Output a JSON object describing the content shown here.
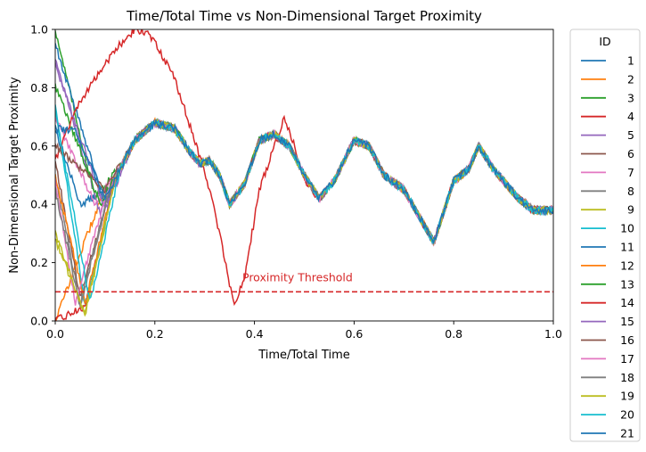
{
  "chart_data": {
    "type": "line",
    "title": "Time/Total Time vs Non-Dimensional Target Proximity",
    "xlabel": "Time/Total Time",
    "ylabel": "Non-Dimensional Target Proximity",
    "xlim": [
      0,
      1
    ],
    "ylim": [
      0,
      1
    ],
    "xticks": [
      "0.0",
      "0.2",
      "0.4",
      "0.6",
      "0.8",
      "1.0"
    ],
    "yticks": [
      "0.0",
      "0.2",
      "0.4",
      "0.6",
      "0.8",
      "1.0"
    ],
    "grid": false,
    "legend": {
      "title": "ID",
      "placement": "outside-right"
    },
    "threshold": {
      "y": 0.1,
      "label": "Proximity Threshold",
      "color": "#d62728",
      "style": "dashed"
    },
    "common_path": {
      "x": [
        0.0,
        0.02,
        0.05,
        0.08,
        0.1,
        0.13,
        0.16,
        0.2,
        0.24,
        0.27,
        0.29,
        0.31,
        0.33,
        0.35,
        0.38,
        0.41,
        0.44,
        0.47,
        0.5,
        0.53,
        0.56,
        0.6,
        0.63,
        0.66,
        0.7,
        0.73,
        0.76,
        0.8,
        0.83,
        0.85,
        0.88,
        0.9,
        0.93,
        0.96,
        1.0
      ],
      "y": [
        0.65,
        0.6,
        0.45,
        0.4,
        0.42,
        0.52,
        0.62,
        0.68,
        0.66,
        0.58,
        0.54,
        0.55,
        0.5,
        0.4,
        0.47,
        0.62,
        0.64,
        0.6,
        0.5,
        0.42,
        0.48,
        0.62,
        0.6,
        0.5,
        0.45,
        0.36,
        0.27,
        0.48,
        0.52,
        0.6,
        0.52,
        0.48,
        0.42,
        0.38,
        0.38
      ]
    },
    "series": [
      {
        "name": "1",
        "color": "#1f77b4",
        "x0": 0.0,
        "y0": 0.66,
        "jx": 0.05,
        "jy": 0.4
      },
      {
        "name": "2",
        "color": "#ff7f0e",
        "x0": 0.0,
        "y0": 0.0,
        "jx": 0.03,
        "jy": 0.14
      },
      {
        "name": "3",
        "color": "#2ca02c",
        "x0": 0.0,
        "y0": 1.0,
        "jx": 0.08,
        "jy": 0.42
      },
      {
        "name": "4",
        "color": "#d62728",
        "x0": 0.0,
        "y0": 0.0,
        "jx": 0.06,
        "jy": 0.05
      },
      {
        "name": "5",
        "color": "#9467bd",
        "x0": 0.0,
        "y0": 0.9,
        "jx": 0.09,
        "jy": 0.37
      },
      {
        "name": "6",
        "color": "#8c564b",
        "x0": 0.0,
        "y0": 0.55,
        "jx": 0.05,
        "jy": 0.08
      },
      {
        "name": "7",
        "color": "#e377c2",
        "x0": 0.0,
        "y0": 0.7,
        "jx": 0.08,
        "jy": 0.4
      },
      {
        "name": "8",
        "color": "#7f7f7f",
        "x0": 0.0,
        "y0": 0.5,
        "jx": 0.05,
        "jy": 0.06
      },
      {
        "name": "9",
        "color": "#bcbd22",
        "x0": 0.0,
        "y0": 0.28,
        "jx": 0.06,
        "jy": 0.02
      },
      {
        "name": "10",
        "color": "#17becf",
        "x0": 0.0,
        "y0": 0.74,
        "jx": 0.06,
        "jy": 0.05
      },
      {
        "name": "11",
        "color": "#1f77b4",
        "x0": 0.0,
        "y0": 0.95,
        "jx": 0.1,
        "jy": 0.4
      },
      {
        "name": "12",
        "color": "#ff7f0e",
        "x0": 0.0,
        "y0": 0.5,
        "jx": 0.06,
        "jy": 0.06
      },
      {
        "name": "13",
        "color": "#2ca02c",
        "x0": 0.0,
        "y0": 0.81,
        "jx": 0.09,
        "jy": 0.4
      },
      {
        "name": "14",
        "color": "#d62728",
        "x0": 0.0,
        "y0": 0.55,
        "jx": 0.05,
        "jy": 0.1,
        "override_x": [
          0.0,
          0.03,
          0.05,
          0.08,
          0.12,
          0.16,
          0.18,
          0.2,
          0.24,
          0.28,
          0.31,
          0.33,
          0.35,
          0.36,
          0.38,
          0.41,
          0.44,
          0.46,
          0.48,
          0.5,
          0.53
        ],
        "override_y": [
          0.55,
          0.68,
          0.75,
          0.83,
          0.93,
          1.0,
          0.99,
          0.96,
          0.83,
          0.62,
          0.45,
          0.3,
          0.12,
          0.05,
          0.15,
          0.45,
          0.6,
          0.7,
          0.6,
          0.48,
          0.42
        ]
      },
      {
        "name": "15",
        "color": "#9467bd",
        "x0": 0.0,
        "y0": 0.88,
        "jx": 0.1,
        "jy": 0.38
      },
      {
        "name": "16",
        "color": "#8c564b",
        "x0": 0.0,
        "y0": 0.6,
        "jx": 0.1,
        "jy": 0.45
      },
      {
        "name": "17",
        "color": "#e377c2",
        "x0": 0.0,
        "y0": 0.48,
        "jx": 0.04,
        "jy": 0.06
      },
      {
        "name": "18",
        "color": "#7f7f7f",
        "x0": 0.0,
        "y0": 0.45,
        "jx": 0.05,
        "jy": 0.05
      },
      {
        "name": "19",
        "color": "#bcbd22",
        "x0": 0.0,
        "y0": 0.3,
        "jx": 0.06,
        "jy": 0.02
      },
      {
        "name": "20",
        "color": "#17becf",
        "x0": 0.0,
        "y0": 0.72,
        "jx": 0.07,
        "jy": 0.06
      },
      {
        "name": "21",
        "color": "#1f77b4",
        "x0": 0.0,
        "y0": 0.66,
        "jx": 0.04,
        "jy": 0.65
      }
    ]
  }
}
